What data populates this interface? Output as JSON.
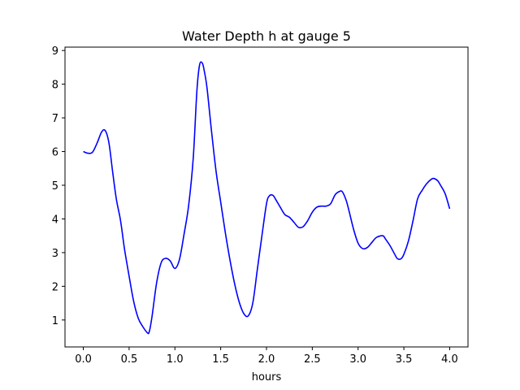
{
  "chart_data": {
    "type": "line",
    "title": "Water Depth h at gauge 5",
    "xlabel": "hours",
    "ylabel": "",
    "xlim": [
      -0.2,
      4.2
    ],
    "ylim": [
      0.2,
      9.1
    ],
    "xticks": [
      0.0,
      0.5,
      1.0,
      1.5,
      2.0,
      2.5,
      3.0,
      3.5,
      4.0
    ],
    "xtick_labels": [
      "0.0",
      "0.5",
      "1.0",
      "1.5",
      "2.0",
      "2.5",
      "3.0",
      "3.5",
      "4.0"
    ],
    "yticks": [
      1,
      2,
      3,
      4,
      5,
      6,
      7,
      8,
      9
    ],
    "ytick_labels": [
      "1",
      "2",
      "3",
      "4",
      "5",
      "6",
      "7",
      "8",
      "9"
    ],
    "grid": false,
    "series": [
      {
        "color": "#0000ff",
        "x": [
          0.0,
          0.05,
          0.1,
          0.15,
          0.2,
          0.24,
          0.28,
          0.32,
          0.36,
          0.4,
          0.42,
          0.45,
          0.5,
          0.55,
          0.6,
          0.65,
          0.7,
          0.72,
          0.75,
          0.8,
          0.85,
          0.9,
          0.95,
          1.0,
          1.05,
          1.1,
          1.15,
          1.2,
          1.24,
          1.27,
          1.3,
          1.32,
          1.35,
          1.4,
          1.45,
          1.5,
          1.55,
          1.6,
          1.65,
          1.7,
          1.75,
          1.8,
          1.85,
          1.9,
          1.95,
          2.0,
          2.03,
          2.07,
          2.1,
          2.15,
          2.2,
          2.25,
          2.3,
          2.35,
          2.4,
          2.45,
          2.5,
          2.55,
          2.6,
          2.65,
          2.7,
          2.75,
          2.8,
          2.83,
          2.87,
          2.9,
          2.95,
          3.0,
          3.05,
          3.1,
          3.15,
          3.2,
          3.27,
          3.3,
          3.35,
          3.4,
          3.43,
          3.47,
          3.5,
          3.55,
          3.6,
          3.65,
          3.7,
          3.75,
          3.8,
          3.83,
          3.87,
          3.9,
          3.95,
          4.0
        ],
        "values": [
          6.0,
          5.95,
          5.98,
          6.25,
          6.58,
          6.62,
          6.25,
          5.4,
          4.6,
          4.05,
          3.7,
          3.1,
          2.3,
          1.55,
          1.05,
          0.8,
          0.62,
          0.65,
          1.1,
          2.1,
          2.7,
          2.83,
          2.75,
          2.53,
          2.8,
          3.55,
          4.4,
          5.8,
          7.8,
          8.58,
          8.62,
          8.4,
          7.9,
          6.6,
          5.4,
          4.5,
          3.6,
          2.8,
          2.1,
          1.55,
          1.2,
          1.12,
          1.5,
          2.5,
          3.5,
          4.45,
          4.68,
          4.7,
          4.58,
          4.35,
          4.13,
          4.05,
          3.9,
          3.75,
          3.77,
          3.95,
          4.2,
          4.35,
          4.38,
          4.38,
          4.45,
          4.72,
          4.82,
          4.8,
          4.55,
          4.25,
          3.7,
          3.28,
          3.12,
          3.15,
          3.3,
          3.45,
          3.5,
          3.4,
          3.2,
          2.95,
          2.82,
          2.82,
          2.95,
          3.35,
          3.95,
          4.6,
          4.85,
          5.05,
          5.18,
          5.2,
          5.13,
          5.0,
          4.75,
          4.3
        ]
      }
    ]
  }
}
